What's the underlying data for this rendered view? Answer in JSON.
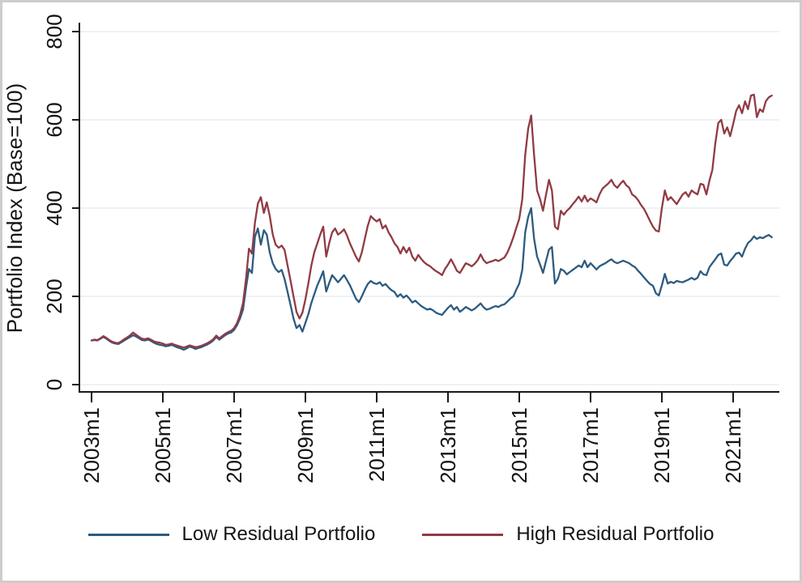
{
  "figure": {
    "background": "#ffffff",
    "border_color": "#cdcdcd",
    "axis_color": "#1a1a1a",
    "grid_color": "#e7edf0",
    "text_color": "#141414"
  },
  "chart_data": {
    "type": "line",
    "title": "",
    "xlabel": "",
    "ylabel": "Portfolio Index (Base=100)",
    "ylim": [
      0,
      800
    ],
    "yticks": [
      0,
      200,
      400,
      600,
      800
    ],
    "grid": true,
    "legend_position": "bottom",
    "x_frequency": "monthly",
    "x_start_label": "2003m1",
    "x_end_label": "2022m2",
    "xtick_every_months": 24,
    "xtick_labels": [
      "2003m1",
      "2005m1",
      "2007m1",
      "2009m1",
      "2011m1",
      "2013m1",
      "2015m1",
      "2017m1",
      "2019m1",
      "2021m1"
    ],
    "series": [
      {
        "name": "Low Residual Portfolio",
        "color": "#2d5b80",
        "values": [
          100,
          101,
          100,
          104,
          108,
          104,
          99,
          95,
          93,
          92,
          96,
          100,
          104,
          108,
          112,
          109,
          105,
          101,
          100,
          102,
          99,
          95,
          92,
          90,
          89,
          87,
          88,
          90,
          87,
          84,
          82,
          79,
          82,
          86,
          84,
          81,
          83,
          85,
          88,
          91,
          95,
          100,
          108,
          102,
          107,
          112,
          116,
          118,
          124,
          135,
          150,
          170,
          220,
          262,
          253,
          335,
          354,
          317,
          350,
          340,
          299,
          275,
          262,
          255,
          260,
          239,
          210,
          180,
          150,
          128,
          135,
          120,
          140,
          160,
          185,
          205,
          225,
          240,
          257,
          211,
          230,
          248,
          240,
          232,
          240,
          248,
          237,
          225,
          210,
          195,
          187,
          200,
          215,
          228,
          235,
          230,
          228,
          232,
          224,
          228,
          220,
          214,
          210,
          199,
          205,
          197,
          202,
          195,
          186,
          190,
          184,
          178,
          174,
          170,
          172,
          168,
          163,
          160,
          158,
          166,
          174,
          180,
          170,
          176,
          165,
          170,
          176,
          172,
          168,
          172,
          178,
          184,
          175,
          170,
          172,
          175,
          178,
          176,
          180,
          182,
          188,
          195,
          200,
          215,
          229,
          260,
          345,
          380,
          400,
          330,
          290,
          272,
          253,
          280,
          306,
          312,
          229,
          240,
          262,
          258,
          250,
          255,
          260,
          265,
          270,
          266,
          281,
          266,
          275,
          268,
          261,
          268,
          272,
          275,
          280,
          284,
          278,
          275,
          278,
          281,
          278,
          275,
          270,
          266,
          258,
          251,
          243,
          235,
          228,
          224,
          207,
          202,
          225,
          251,
          229,
          233,
          230,
          235,
          233,
          232,
          235,
          238,
          242,
          238,
          242,
          257,
          250,
          248,
          266,
          275,
          284,
          294,
          297,
          272,
          270,
          280,
          288,
          297,
          299,
          290,
          308,
          321,
          327,
          336,
          330,
          334,
          332,
          336,
          339,
          334
        ]
      },
      {
        "name": "High Residual Portfolio",
        "color": "#903b44",
        "values": [
          100,
          102,
          101,
          105,
          110,
          106,
          101,
          97,
          95,
          94,
          98,
          103,
          107,
          112,
          118,
          113,
          108,
          104,
          103,
          105,
          102,
          98,
          96,
          95,
          93,
          90,
          91,
          93,
          90,
          88,
          86,
          84,
          86,
          89,
          87,
          85,
          86,
          88,
          91,
          94,
          98,
          103,
          111,
          105,
          110,
          115,
          119,
          122,
          128,
          140,
          158,
          185,
          240,
          308,
          297,
          367,
          410,
          425,
          389,
          413,
          382,
          340,
          317,
          310,
          315,
          305,
          270,
          235,
          200,
          165,
          150,
          163,
          193,
          230,
          270,
          300,
          320,
          340,
          358,
          290,
          320,
          345,
          354,
          340,
          345,
          352,
          338,
          320,
          305,
          290,
          279,
          300,
          330,
          360,
          382,
          375,
          370,
          375,
          354,
          361,
          345,
          334,
          320,
          312,
          297,
          312,
          299,
          310,
          290,
          281,
          294,
          285,
          277,
          272,
          268,
          262,
          257,
          253,
          248,
          262,
          272,
          284,
          272,
          258,
          253,
          264,
          275,
          272,
          268,
          274,
          282,
          295,
          282,
          275,
          278,
          280,
          283,
          280,
          284,
          288,
          299,
          315,
          334,
          355,
          376,
          420,
          520,
          580,
          610,
          520,
          440,
          420,
          394,
          430,
          464,
          440,
          358,
          352,
          394,
          385,
          394,
          400,
          409,
          417,
          426,
          415,
          428,
          415,
          422,
          418,
          413,
          431,
          444,
          450,
          456,
          464,
          452,
          446,
          455,
          462,
          452,
          446,
          431,
          426,
          418,
          407,
          398,
          385,
          371,
          358,
          349,
          347,
          400,
          440,
          418,
          425,
          417,
          409,
          420,
          431,
          436,
          426,
          440,
          435,
          431,
          455,
          453,
          431,
          462,
          486,
          547,
          593,
          600,
          569,
          583,
          563,
          590,
          620,
          633,
          615,
          642,
          624,
          655,
          657,
          606,
          624,
          618,
          642,
          651,
          655
        ]
      }
    ]
  }
}
